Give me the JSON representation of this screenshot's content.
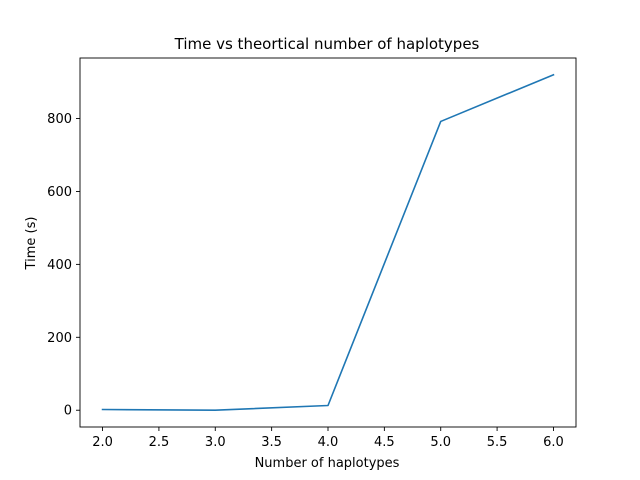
{
  "chart_data": {
    "type": "line",
    "title": "Time vs theortical number of haplotypes",
    "xlabel": "Number of haplotypes",
    "ylabel": "Time (s)",
    "x": [
      2,
      3,
      4,
      5,
      6
    ],
    "series": [
      {
        "values": [
          2,
          0,
          13,
          792,
          920
        ],
        "color": "#1f77b4"
      }
    ],
    "xlim": [
      1.8,
      6.2
    ],
    "ylim": [
      -46,
      966
    ],
    "xticks": [
      2.0,
      2.5,
      3.0,
      3.5,
      4.0,
      4.5,
      5.0,
      5.5,
      6.0
    ],
    "xtick_labels": [
      "2.0",
      "2.5",
      "3.0",
      "3.5",
      "4.0",
      "4.5",
      "5.0",
      "5.5",
      "6.0"
    ],
    "yticks": [
      0,
      200,
      400,
      600,
      800
    ],
    "ytick_labels": [
      "0",
      "200",
      "400",
      "600",
      "800"
    ],
    "grid": false,
    "legend": "none"
  }
}
